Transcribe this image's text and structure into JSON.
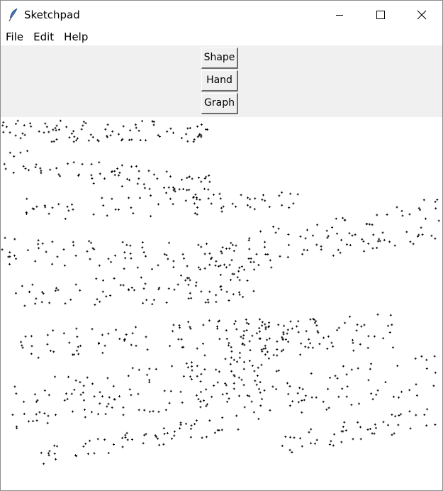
{
  "window": {
    "title": "Sketchpad",
    "icon": "feather-icon",
    "controls": [
      "minimize-icon",
      "maximize-icon",
      "close-icon"
    ]
  },
  "menu": {
    "items": [
      "File",
      "Edit",
      "Help"
    ]
  },
  "toolbar": {
    "shape_label": "Shape",
    "hand_label": "Hand",
    "graph_label": "Graph"
  },
  "canvas": {
    "background": "#ffffff",
    "mark_color": "#000000",
    "mark_style": "plus"
  }
}
